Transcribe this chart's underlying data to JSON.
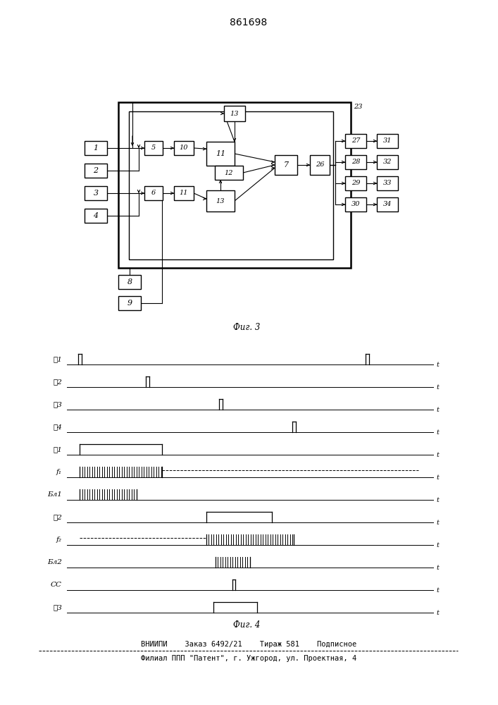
{
  "title": "861698",
  "fig3_caption": "Фиг. 3",
  "fig4_caption": "Фиг. 4",
  "footer_line1": "ВНИИПИ    Заказ 6492/21    Тираж 581    Подписное",
  "footer_line2": "Филиал ППП \"Патент\", г. Ужгород, ул. Проектная, 4",
  "bg_color": "#ffffff",
  "box_color": "#000000",
  "line_color": "#000000",
  "signal_labels": [
    "䄏1",
    "䄏2",
    "䄏3",
    "䄏4",
    "䈯1",
    "f₁",
    "Бл1",
    "䈯2",
    "f₂",
    "Бл2",
    "СС",
    "䈯З"
  ]
}
